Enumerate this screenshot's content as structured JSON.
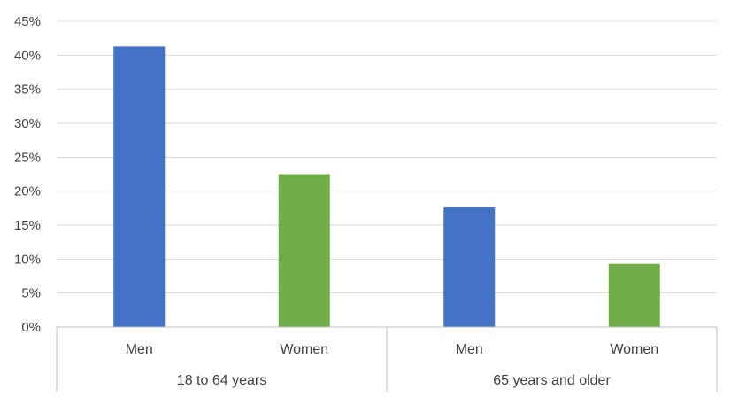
{
  "chart_data": {
    "type": "bar",
    "title": "",
    "xlabel": "",
    "ylabel": "",
    "ylim": [
      0,
      45
    ],
    "y_ticks": [
      "0%",
      "5%",
      "10%",
      "15%",
      "20%",
      "25%",
      "30%",
      "35%",
      "40%",
      "45%"
    ],
    "y_tick_values": [
      0,
      5,
      10,
      15,
      20,
      25,
      30,
      35,
      40,
      45
    ],
    "y_unit": "%",
    "grid": true,
    "legend": "none",
    "groups": [
      {
        "label": "18 to 64 years",
        "categories": [
          "Men",
          "Women"
        ]
      },
      {
        "label": "65 years and older",
        "categories": [
          "Men",
          "Women"
        ]
      }
    ],
    "categories": [
      "Men",
      "Women",
      "Men",
      "Women"
    ],
    "values": [
      41.3,
      22.5,
      17.6,
      9.3
    ],
    "bar_colors": [
      "#4472C4",
      "#70AD47",
      "#4472C4",
      "#70AD47"
    ]
  },
  "colors": {
    "grid": "#d9d9d9",
    "axis": "#bfbfbf",
    "text": "#404040"
  }
}
